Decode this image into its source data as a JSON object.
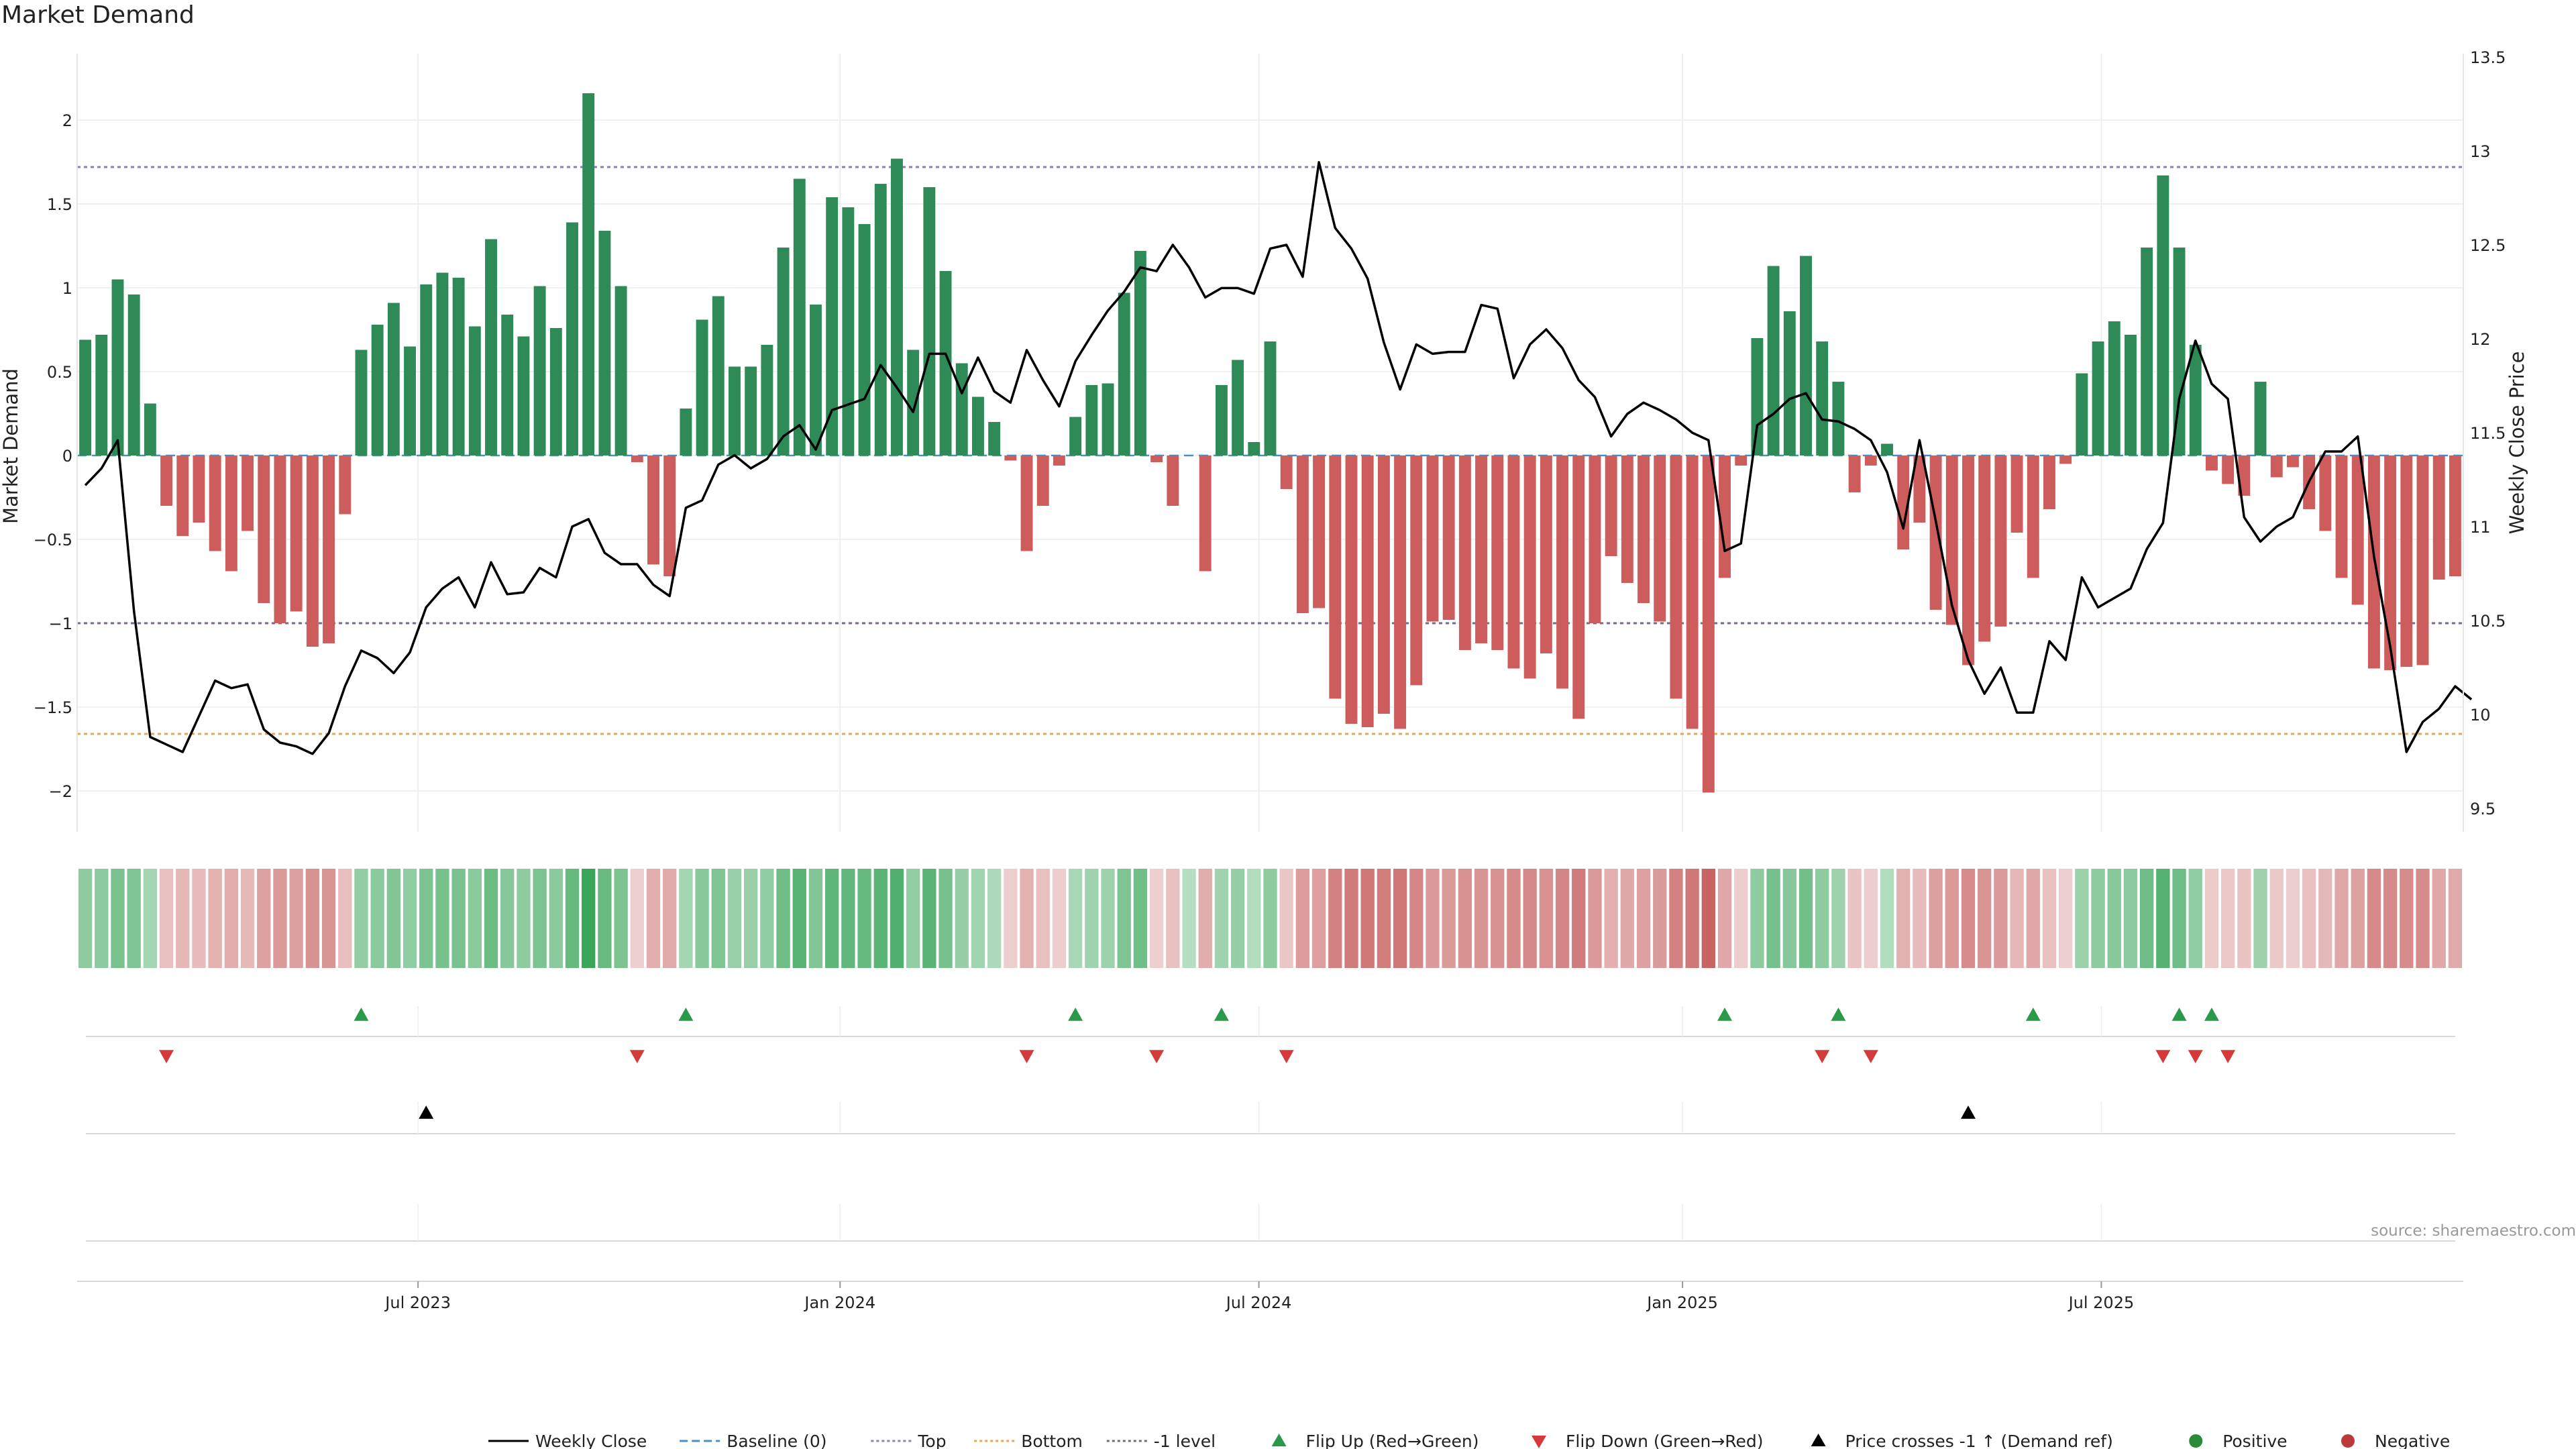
{
  "title": "Market Demand",
  "source": "source: sharemaestro.com",
  "colors": {
    "positive": "#2e8b57",
    "negative": "#cd5c5c",
    "price_line": "#000000",
    "baseline": "#4a90c8",
    "top": "#8a7cc4",
    "bottom": "#e5a84a",
    "minus1": "#7a6a8a",
    "flip_up": "#2a9a4a",
    "flip_down": "#d43a3a",
    "cross": "#000000"
  },
  "chart_data": {
    "type": "bar",
    "title": "Market Demand",
    "ylabel": "Market Demand",
    "ylabel_right": "Weekly Close Price",
    "ylim": [
      -2.25,
      2.4
    ],
    "ylim_right": [
      9.4,
      13.55
    ],
    "yticks": [
      "2",
      "1.5",
      "1",
      "0.5",
      "0",
      "−0.5",
      "−1",
      "−1.5",
      "−2"
    ],
    "ytick_values": [
      2,
      1.5,
      1,
      0.5,
      0,
      -0.5,
      -1,
      -1.5,
      -2
    ],
    "yticks_right": [
      "13.5",
      "13",
      "12.5",
      "12",
      "11.5",
      "11",
      "10.5",
      "10",
      "9.5"
    ],
    "ytick_right_values": [
      13.5,
      13,
      12.5,
      12,
      11.5,
      11,
      10.5,
      10,
      9.5
    ],
    "xticks": [
      "Jul 2023",
      "Jan 2024",
      "Jul 2024",
      "Jan 2025",
      "Jul 2025"
    ],
    "xtick_weeks": [
      20.5,
      46.5,
      72.3,
      98.4,
      124.2
    ],
    "levels": {
      "top": 1.72,
      "bottom": -1.66,
      "minus1": -1.0,
      "baseline": 0
    },
    "demand": [
      0.69,
      0.72,
      1.05,
      0.96,
      0.31,
      -0.3,
      -0.48,
      -0.4,
      -0.57,
      -0.69,
      -0.45,
      -0.88,
      -1.0,
      -0.93,
      -1.14,
      -1.12,
      -0.35,
      0.63,
      0.78,
      0.91,
      0.65,
      1.02,
      1.09,
      1.06,
      0.77,
      1.29,
      0.84,
      0.71,
      1.01,
      0.76,
      1.39,
      2.16,
      1.34,
      1.01,
      -0.04,
      -0.65,
      -0.72,
      0.28,
      0.81,
      0.95,
      0.53,
      0.53,
      0.66,
      1.24,
      1.65,
      0.9,
      1.54,
      1.48,
      1.38,
      1.62,
      1.77,
      0.63,
      1.6,
      1.1,
      0.55,
      0.35,
      0.2,
      -0.03,
      -0.57,
      -0.3,
      -0.06,
      0.23,
      0.42,
      0.43,
      0.97,
      1.22,
      -0.04,
      -0.3,
      0,
      -0.69,
      0.42,
      0.57,
      0.08,
      0.68,
      -0.2,
      -0.94,
      -0.91,
      -1.45,
      -1.6,
      -1.62,
      -1.54,
      -1.63,
      -1.37,
      -0.99,
      -0.98,
      -1.16,
      -1.12,
      -1.16,
      -1.27,
      -1.33,
      -1.18,
      -1.39,
      -1.57,
      -1.0,
      -0.6,
      -0.76,
      -0.88,
      -0.99,
      -1.45,
      -1.63,
      -2.01,
      -0.73,
      -0.06,
      0.7,
      1.13,
      0.86,
      1.19,
      0.68,
      0.44,
      -0.22,
      -0.06,
      0.07,
      -0.56,
      -0.4,
      -0.92,
      -1.01,
      -1.25,
      -1.11,
      -1.02,
      -0.46,
      -0.73,
      -0.32,
      -0.05,
      0.49,
      0.68,
      0.8,
      0.72,
      1.24,
      1.67,
      1.24,
      0.66,
      -0.09,
      -0.17,
      -0.24,
      0.44,
      -0.13,
      -0.07,
      -0.32,
      -0.45,
      -0.73,
      -0.89,
      -1.27,
      -1.28,
      -1.26,
      -1.25,
      -0.74,
      -0.72
    ],
    "weekly_close": [
      11.22,
      11.31,
      11.46,
      10.55,
      9.88,
      9.84,
      9.8,
      9.99,
      10.18,
      10.14,
      10.16,
      9.92,
      9.85,
      9.83,
      9.79,
      9.9,
      10.15,
      10.34,
      10.3,
      10.22,
      10.33,
      10.57,
      10.67,
      10.73,
      10.57,
      10.81,
      10.64,
      10.65,
      10.78,
      10.73,
      11.0,
      11.04,
      10.86,
      10.8,
      10.8,
      10.69,
      10.63,
      11.1,
      11.14,
      11.33,
      11.38,
      11.31,
      11.36,
      11.48,
      11.54,
      11.41,
      11.62,
      11.65,
      11.68,
      11.86,
      11.74,
      11.61,
      11.92,
      11.92,
      11.71,
      11.9,
      11.72,
      11.66,
      11.94,
      11.78,
      11.64,
      11.88,
      12.02,
      12.15,
      12.25,
      12.38,
      12.36,
      12.5,
      12.38,
      12.22,
      12.27,
      12.27,
      12.24,
      12.48,
      12.5,
      12.33,
      12.94,
      12.59,
      12.48,
      12.32,
      11.98,
      11.73,
      11.97,
      11.92,
      11.93,
      11.93,
      12.18,
      12.16,
      11.79,
      11.97,
      12.05,
      11.95,
      11.78,
      11.69,
      11.48,
      11.6,
      11.66,
      11.62,
      11.57,
      11.5,
      11.46,
      10.87,
      10.91,
      11.54,
      11.6,
      11.68,
      11.71,
      11.57,
      11.56,
      11.52,
      11.46,
      11.29,
      10.99,
      11.46,
      11.03,
      10.58,
      10.29,
      10.11,
      10.25,
      10.01,
      10.01,
      10.39,
      10.29,
      10.73,
      10.57,
      10.62,
      10.67,
      10.88,
      11.02,
      11.68,
      11.99,
      11.76,
      11.68,
      11.05,
      10.92,
      11.0,
      11.05,
      11.24,
      11.4,
      11.4,
      11.48,
      10.84,
      10.36,
      9.8,
      9.96,
      10.03,
      10.15,
      10.08
    ]
  },
  "strip_shades": [
    0.69,
    0.72,
    1.05,
    0.96,
    0.31,
    -0.3,
    -0.48,
    -0.4,
    -0.57,
    -0.69,
    -0.45,
    -0.88,
    -1.0,
    -0.93,
    -1.14,
    -1.12,
    -0.35,
    0.63,
    0.78,
    0.91,
    0.65,
    1.02,
    1.09,
    1.06,
    0.77,
    1.29,
    0.84,
    0.71,
    1.01,
    0.76,
    1.39,
    2.16,
    1.34,
    1.01,
    -0.04,
    -0.65,
    -0.72,
    0.28,
    0.81,
    0.95,
    0.53,
    0.53,
    0.66,
    1.24,
    1.65,
    0.9,
    1.54,
    1.48,
    1.38,
    1.62,
    1.77,
    0.63,
    1.6,
    1.1,
    0.55,
    0.35,
    0.2,
    -0.03,
    -0.57,
    -0.3,
    -0.06,
    0.23,
    0.42,
    0.43,
    0.97,
    1.22,
    -0.04,
    -0.3,
    0,
    -0.69,
    0.42,
    0.57,
    0.08,
    0.68,
    -0.2,
    -0.94,
    -0.91,
    -1.45,
    -1.6,
    -1.62,
    -1.54,
    -1.63,
    -1.37,
    -0.99,
    -0.98,
    -1.16,
    -1.12,
    -1.16,
    -1.27,
    -1.33,
    -1.18,
    -1.39,
    -1.57,
    -1.0,
    -0.6,
    -0.76,
    -0.88,
    -0.99,
    -1.45,
    -1.63,
    -2.01,
    -0.73,
    -0.06,
    0.7,
    1.13,
    0.86,
    1.19,
    0.68,
    0.44,
    -0.22,
    -0.06,
    0.07,
    -0.56,
    -0.4,
    -0.92,
    -1.01,
    -1.25,
    -1.11,
    -1.02,
    -0.46,
    -0.73,
    -0.32,
    -0.05,
    0.49,
    0.68,
    0.8,
    0.72,
    1.24,
    1.67,
    1.24,
    0.66,
    -0.09,
    -0.17,
    -0.24,
    0.44,
    -0.13,
    -0.07,
    -0.32,
    -0.45,
    -0.73,
    -0.89,
    -1.27,
    -1.28,
    -1.26,
    -1.25,
    -0.74,
    -0.72
  ],
  "events": {
    "flip_up_weeks": [
      17,
      37,
      61,
      70,
      101,
      108,
      120,
      129,
      131
    ],
    "flip_down_weeks": [
      5,
      34,
      58,
      66,
      74,
      107,
      110,
      128,
      130,
      132
    ],
    "cross_weeks": [
      21,
      116
    ]
  },
  "legend": [
    {
      "label": "Weekly Close",
      "kind": "line-solid",
      "color": "#000000"
    },
    {
      "label": "Baseline (0)",
      "kind": "line-dash",
      "color": "#4a90c8"
    },
    {
      "label": "Top",
      "kind": "line-dot",
      "color": "#8a7cc4"
    },
    {
      "label": "Bottom",
      "kind": "line-dot",
      "color": "#e5a84a"
    },
    {
      "label": "-1 level",
      "kind": "line-dot",
      "color": "#7a6a8a"
    },
    {
      "label": "Flip Up (Red→Green)",
      "kind": "tri-up",
      "color": "#2a9a4a"
    },
    {
      "label": "Flip Down (Green→Red)",
      "kind": "tri-down",
      "color": "#d43a3a"
    },
    {
      "label": "Price crosses -1 ↑ (Demand ref)",
      "kind": "tri-up",
      "color": "#000000"
    },
    {
      "label": "Positive",
      "kind": "dot",
      "color": "#2a8a3a"
    },
    {
      "label": "Negative",
      "kind": "dot",
      "color": "#b83a3a"
    }
  ]
}
